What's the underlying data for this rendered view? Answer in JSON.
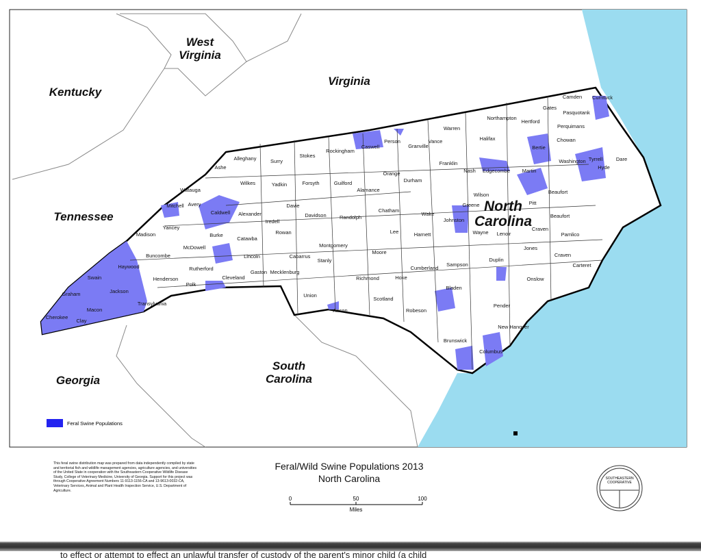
{
  "map": {
    "title": "Feral/Wild Swine Populations 2013",
    "subtitle": "North Carolina",
    "legend_label": "Feral Swine Populations",
    "legend_color": "#2323f0",
    "population_color": "#7b7bf4",
    "water_color": "#9bdcf0",
    "state_labels": [
      "West Virginia",
      "Kentucky",
      "Virginia",
      "Tennessee",
      "Georgia",
      "South Carolina"
    ],
    "nc_label": "North Carolina",
    "scale": {
      "ticks": [
        "0",
        "50",
        "100"
      ],
      "unit": "Miles"
    },
    "counties": [
      "Ashe",
      "Alleghany",
      "Surry",
      "Stokes",
      "Rockingham",
      "Caswell",
      "Person",
      "Granville",
      "Vance",
      "Warren",
      "Northampton",
      "Hertford",
      "Gates",
      "Camden",
      "Currituck",
      "Pasquotank",
      "Perquimans",
      "Chowan",
      "Bertie",
      "Halifax",
      "Washington",
      "Tyrrell",
      "Dare",
      "Hyde",
      "Martin",
      "Edgecombe",
      "Nash",
      "Franklin",
      "Wilkes",
      "Yadkin",
      "Forsyth",
      "Guilford",
      "Alamance",
      "Orange",
      "Durham",
      "Watauga",
      "Avery",
      "Mitchell",
      "Caldwell",
      "Alexander",
      "Davie",
      "Iredell",
      "Davidson",
      "Randolph",
      "Chatham",
      "Wake",
      "Johnston",
      "Wilson",
      "Greene",
      "Pitt",
      "Beaufort",
      "Yancey",
      "Madison",
      "Burke",
      "Catawba",
      "Rowan",
      "Lee",
      "Harnett",
      "Wayne",
      "Lenoir",
      "Craven",
      "Pamlico",
      "Buncombe",
      "McDowell",
      "Lincoln",
      "Cabarrus",
      "Stanly",
      "Montgomery",
      "Moore",
      "Cumberland",
      "Sampson",
      "Duplin",
      "Jones",
      "Onslow",
      "Carteret",
      "Haywood",
      "Henderson",
      "Rutherford",
      "Polk",
      "Cleveland",
      "Gaston",
      "Mecklenburg",
      "Union",
      "Anson",
      "Richmond",
      "Hoke",
      "Scotland",
      "Robeson",
      "Bladen",
      "Pender",
      "New Hanover",
      "Brunswick",
      "Columbus",
      "Swain",
      "Graham",
      "Jackson",
      "Macon",
      "Transylvania",
      "Cherokee",
      "Clay",
      "Beaufort",
      "Craven"
    ],
    "footnote": "This feral swine distribution map was prepared from data independently compiled by state and territorial fish and wildlife management agencies, agriculture agencies, and universities of the United State in cooperation with the Southeastern Cooperative Wildlife Disease Study, College of Veterinary Medicine, University of Georgia.  Support for this project was through Cooperative Agreement Numbers 11-9113-1156-CA and 13-9613-0032-CA, Veterinary Services, Animal and Plant Health Inspection Service, U.S. Department of Agriculture.",
    "seal_text": "Southeastern Cooperative Wildlife Disease Study"
  },
  "page": {
    "bottom_text": "to effect or attempt to effect an unlawful transfer of custody of the parent's minor child (a child"
  }
}
